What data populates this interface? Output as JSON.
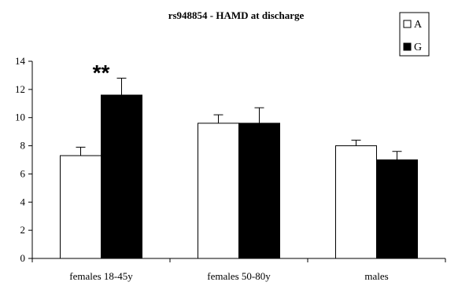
{
  "chart_data": {
    "type": "bar",
    "title": "rs948854 - HAMD at discharge",
    "categories": [
      "females 18-45y",
      "females 50-80y",
      "males"
    ],
    "series": [
      {
        "name": "A",
        "values": [
          7.3,
          9.6,
          8.0
        ],
        "errors": [
          0.6,
          0.6,
          0.4
        ],
        "color": "#ffffff"
      },
      {
        "name": "G",
        "values": [
          11.6,
          9.6,
          7.0
        ],
        "errors": [
          1.2,
          1.1,
          0.6
        ],
        "color": "#000000"
      }
    ],
    "ylim": [
      0,
      14
    ],
    "yticks": [
      "0",
      "2",
      "4",
      "6",
      "8",
      "10",
      "12",
      "14"
    ],
    "xlabel": "",
    "ylabel": "",
    "grid": false,
    "legend": "top-right",
    "annotations": [
      {
        "text": "**",
        "category_index": 0
      }
    ]
  }
}
